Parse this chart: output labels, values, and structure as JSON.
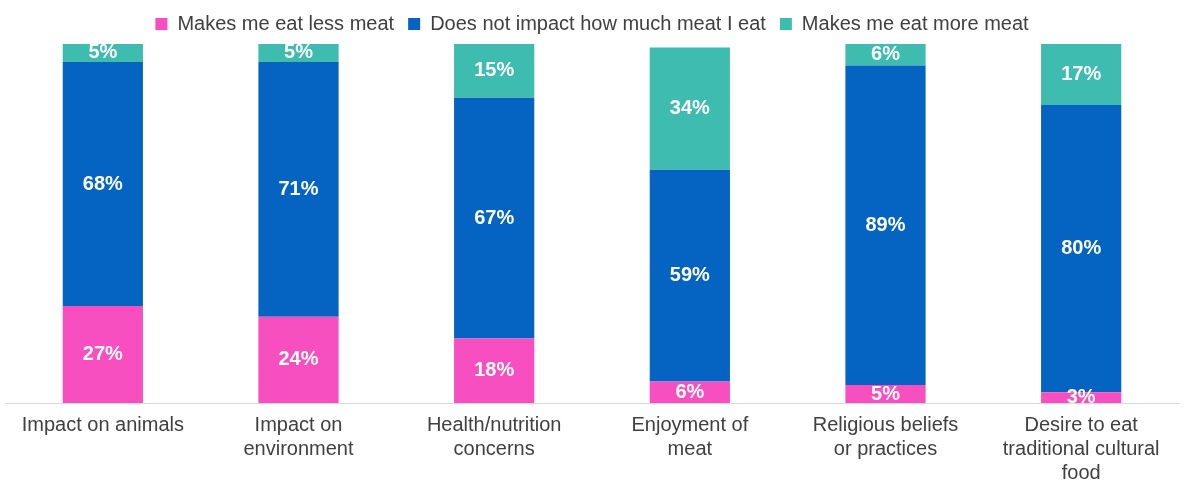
{
  "chart_data": {
    "type": "bar",
    "stacked": true,
    "legend": "top",
    "categories": [
      "Impact on animals",
      "Impact on environment",
      "Health/nutrition concerns",
      "Enjoyment of meat",
      "Religious beliefs or practices",
      "Desire to eat traditional cultural food"
    ],
    "series": [
      {
        "name": "Makes me eat less meat",
        "color": "#f74fc0",
        "values": [
          27,
          24,
          18,
          6,
          5,
          3
        ],
        "value_labels": [
          "27%",
          "24%",
          "18%",
          "6%",
          "5%",
          "3%"
        ]
      },
      {
        "name": "Does not impact how much meat I eat",
        "color": "#0563c1",
        "values": [
          68,
          71,
          67,
          59,
          89,
          80
        ],
        "value_labels": [
          "68%",
          "71%",
          "67%",
          "59%",
          "89%",
          "80%"
        ]
      },
      {
        "name": "Makes me eat more meat",
        "color": "#3fbcb0",
        "values": [
          5,
          5,
          15,
          34,
          6,
          17
        ],
        "value_labels": [
          "5%",
          "5%",
          "15%",
          "34%",
          "6%",
          "17%"
        ]
      }
    ]
  }
}
